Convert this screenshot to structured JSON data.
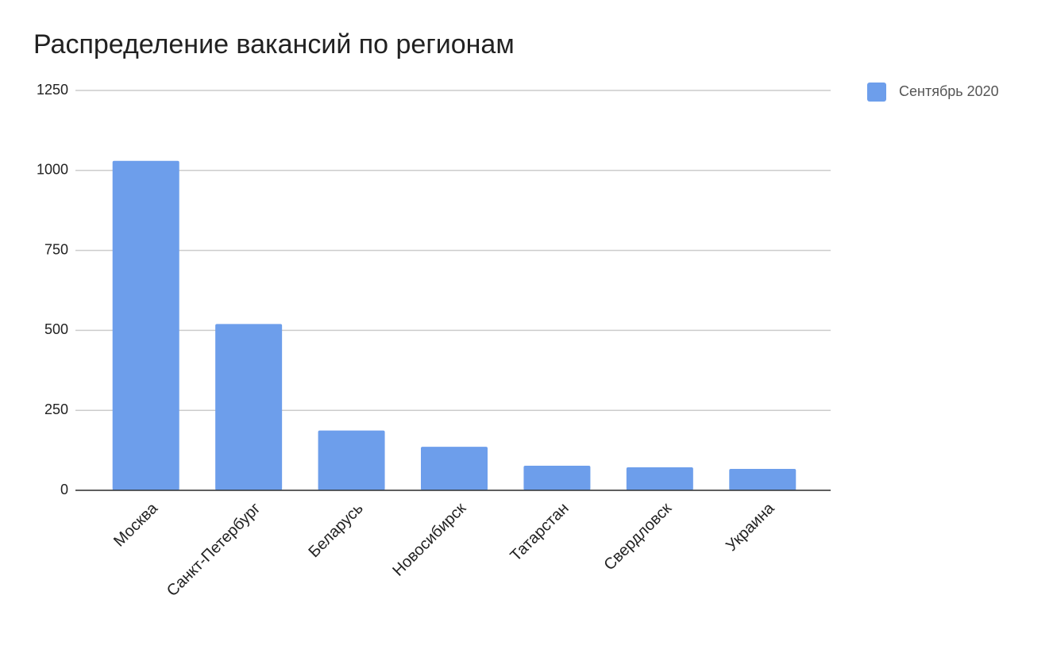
{
  "chart_data": {
    "type": "bar",
    "title": "Распределение вакансий по регионам",
    "categories": [
      "Москва",
      "Санкт-Петербург",
      "Беларусь",
      "Новосибирск",
      "Татарстан",
      "Свердловск",
      "Украина"
    ],
    "series": [
      {
        "name": "Сентябрь 2020",
        "color": "#6d9eeb",
        "values": [
          1030,
          520,
          187,
          136,
          77,
          72,
          67
        ]
      }
    ],
    "ylim": [
      0,
      1250
    ],
    "yticks": [
      0,
      250,
      500,
      750,
      1000,
      1250
    ],
    "grid": true,
    "legend": "right"
  }
}
